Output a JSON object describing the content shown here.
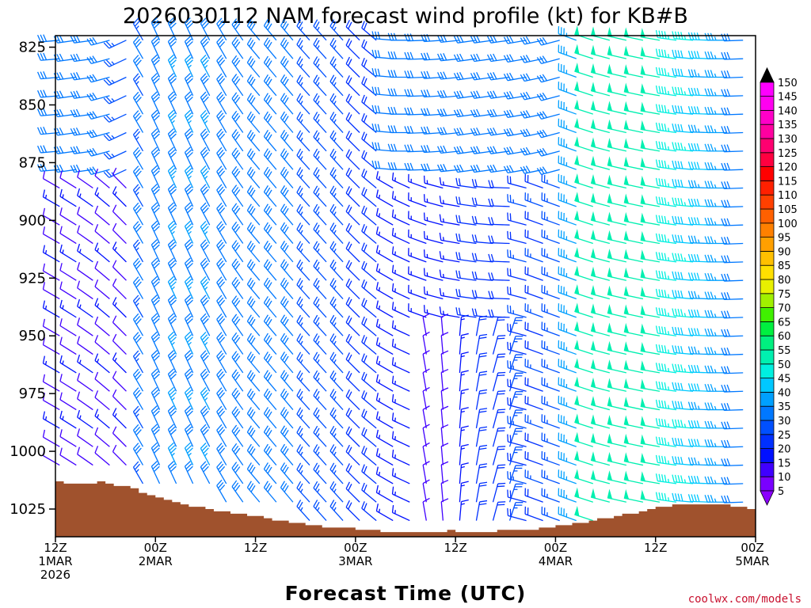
{
  "chart_data": {
    "type": "wind_profile",
    "title": "2026030112 NAM forecast wind profile (kt) for KB#B",
    "xlabel": "Forecast Time (UTC)",
    "ylabel": "",
    "credit": "coolwx.com/models",
    "y_axis": {
      "units": "hPa",
      "range": [
        1037,
        820
      ],
      "ticks": [
        "825",
        "850",
        "875",
        "900",
        "925",
        "950",
        "975",
        "1000",
        "1025"
      ]
    },
    "x_axis": {
      "units": "hours since 12Z 1 Mar 2026",
      "range": [
        0,
        84
      ],
      "ticks": [
        {
          "hour": 0,
          "line1": "12Z",
          "line2": "1MAR",
          "line3": "2026"
        },
        {
          "hour": 12,
          "line1": "00Z",
          "line2": "2MAR",
          "line3": ""
        },
        {
          "hour": 24,
          "line1": "12Z",
          "line2": "",
          "line3": ""
        },
        {
          "hour": 36,
          "line1": "00Z",
          "line2": "3MAR",
          "line3": ""
        },
        {
          "hour": 48,
          "line1": "12Z",
          "line2": "",
          "line3": ""
        },
        {
          "hour": 60,
          "line1": "00Z",
          "line2": "4MAR",
          "line3": ""
        },
        {
          "hour": 72,
          "line1": "12Z",
          "line2": "",
          "line3": ""
        },
        {
          "hour": 84,
          "line1": "00Z",
          "line2": "5MAR",
          "line3": ""
        }
      ]
    },
    "surface_pressure": {
      "color": "#a0522d",
      "hours": [
        0,
        1,
        2,
        3,
        4,
        5,
        6,
        7,
        8,
        9,
        10,
        11,
        12,
        13,
        14,
        15,
        16,
        17,
        18,
        19,
        20,
        21,
        22,
        23,
        24,
        25,
        26,
        27,
        28,
        29,
        30,
        31,
        32,
        33,
        34,
        35,
        36,
        37,
        38,
        39,
        40,
        41,
        42,
        43,
        44,
        45,
        46,
        47,
        48,
        49,
        50,
        51,
        52,
        53,
        54,
        55,
        56,
        57,
        58,
        59,
        60,
        61,
        62,
        63,
        64,
        65,
        66,
        67,
        68,
        69,
        70,
        71,
        72,
        73,
        74,
        75,
        76,
        77,
        78,
        79,
        80,
        81,
        82,
        83,
        84
      ],
      "values": [
        1013,
        1014,
        1014,
        1014,
        1014,
        1013,
        1014,
        1015,
        1015,
        1016,
        1018,
        1019,
        1020,
        1021,
        1022,
        1023,
        1024,
        1024,
        1025,
        1026,
        1026,
        1027,
        1027,
        1028,
        1028,
        1029,
        1030,
        1030,
        1031,
        1031,
        1032,
        1032,
        1033,
        1033,
        1033,
        1033,
        1034,
        1034,
        1034,
        1035,
        1035,
        1035,
        1035,
        1035,
        1035,
        1035,
        1035,
        1034,
        1035,
        1035,
        1035,
        1035,
        1035,
        1034,
        1034,
        1034,
        1034,
        1034,
        1033,
        1033,
        1032,
        1032,
        1031,
        1031,
        1030,
        1029,
        1029,
        1028,
        1027,
        1027,
        1026,
        1025,
        1024,
        1024,
        1023,
        1023,
        1023,
        1023,
        1023,
        1023,
        1023,
        1024,
        1024,
        1025,
        1025
      ]
    },
    "colorbar": {
      "levels": [
        "5",
        "10",
        "15",
        "20",
        "25",
        "30",
        "35",
        "40",
        "45",
        "50",
        "55",
        "60",
        "65",
        "70",
        "75",
        "80",
        "85",
        "90",
        "95",
        "100",
        "105",
        "110",
        "115",
        "120",
        "125",
        "130",
        "135",
        "140",
        "145",
        "150"
      ],
      "colors": [
        "#8b00ff",
        "#7a00ff",
        "#4000ff",
        "#0010ff",
        "#0030ff",
        "#0050ff",
        "#0078ff",
        "#00a0ff",
        "#00c8ff",
        "#00f0e0",
        "#00f0b0",
        "#00f080",
        "#00f040",
        "#40f000",
        "#a0f000",
        "#e8f000",
        "#ffe000",
        "#ffc000",
        "#ffa000",
        "#ff8000",
        "#ff6000",
        "#ff4000",
        "#ff2000",
        "#ff0000",
        "#ff0040",
        "#ff0070",
        "#ff00a0",
        "#ff00c8",
        "#ff00f0",
        "#ff00ff"
      ]
    },
    "barb_levels": [
      822,
      830,
      838,
      846,
      854,
      862,
      870,
      878,
      886,
      894,
      902,
      910,
      918,
      926,
      934,
      942,
      950,
      958,
      966,
      974,
      982,
      990,
      998,
      1006,
      1014,
      1022,
      1030
    ],
    "barb_columns": [
      {
        "hour": 0.5,
        "segments": [
          {
            "from": 822,
            "to": 880,
            "dir": 265,
            "spd": 30,
            "dspd": 0
          },
          {
            "from": 880,
            "to": 1010,
            "dir": 300,
            "spd": 12,
            "dspd": -2
          }
        ]
      },
      {
        "hour": 2.5,
        "segments": [
          {
            "from": 822,
            "to": 880,
            "dir": 262,
            "spd": 30,
            "dspd": 0
          },
          {
            "from": 880,
            "to": 1010,
            "dir": 302,
            "spd": 12,
            "dspd": -2
          }
        ]
      },
      {
        "hour": 4.5,
        "segments": [
          {
            "from": 822,
            "to": 880,
            "dir": 262,
            "spd": 30,
            "dspd": 0
          },
          {
            "from": 880,
            "to": 1010,
            "dir": 305,
            "spd": 12,
            "dspd": -2
          }
        ]
      },
      {
        "hour": 6.5,
        "segments": [
          {
            "from": 822,
            "to": 880,
            "dir": 255,
            "spd": 28,
            "dspd": 0
          },
          {
            "from": 880,
            "to": 1010,
            "dir": 310,
            "spd": 11,
            "dspd": -2
          }
        ]
      },
      {
        "hour": 8.5,
        "segments": [
          {
            "from": 822,
            "to": 880,
            "dir": 245,
            "spd": 26,
            "dspd": 0
          },
          {
            "from": 880,
            "to": 1010,
            "dir": 315,
            "spd": 11,
            "dspd": -2
          }
        ]
      },
      {
        "hour": 10.5,
        "segments": [
          {
            "from": 822,
            "to": 1014,
            "dir": 330,
            "spd": 28,
            "dspd": 2
          }
        ]
      },
      {
        "hour": 12.5,
        "segments": [
          {
            "from": 822,
            "to": 1014,
            "dir": 335,
            "spd": 30,
            "dspd": 2
          }
        ]
      },
      {
        "hour": 14.5,
        "segments": [
          {
            "from": 822,
            "to": 1016,
            "dir": 335,
            "spd": 32,
            "dspd": 2
          }
        ]
      },
      {
        "hour": 16.5,
        "segments": [
          {
            "from": 822,
            "to": 1018,
            "dir": 335,
            "spd": 32,
            "dspd": 2
          }
        ]
      },
      {
        "hour": 18.5,
        "segments": [
          {
            "from": 822,
            "to": 1020,
            "dir": 332,
            "spd": 32,
            "dspd": 2
          }
        ]
      },
      {
        "hour": 20.5,
        "segments": [
          {
            "from": 822,
            "to": 1022,
            "dir": 330,
            "spd": 30,
            "dspd": 2
          }
        ]
      },
      {
        "hour": 22.5,
        "segments": [
          {
            "from": 822,
            "to": 1024,
            "dir": 325,
            "spd": 30,
            "dspd": 0
          }
        ]
      },
      {
        "hour": 24.5,
        "segments": [
          {
            "from": 822,
            "to": 1026,
            "dir": 320,
            "spd": 28,
            "dspd": 0
          }
        ]
      },
      {
        "hour": 26.5,
        "segments": [
          {
            "from": 822,
            "to": 1027,
            "dir": 320,
            "spd": 28,
            "dspd": 0
          }
        ]
      },
      {
        "hour": 28.5,
        "segments": [
          {
            "from": 822,
            "to": 1029,
            "dir": 320,
            "spd": 28,
            "dspd": 0
          }
        ]
      },
      {
        "hour": 30.5,
        "segments": [
          {
            "from": 822,
            "to": 1030,
            "dir": 318,
            "spd": 26,
            "dspd": 0
          }
        ]
      },
      {
        "hour": 32.5,
        "segments": [
          {
            "from": 822,
            "to": 1031,
            "dir": 318,
            "spd": 26,
            "dspd": 0
          }
        ]
      },
      {
        "hour": 34.5,
        "segments": [
          {
            "from": 822,
            "to": 1032,
            "dir": 318,
            "spd": 24,
            "dspd": 0
          }
        ]
      },
      {
        "hour": 36.5,
        "segments": [
          {
            "from": 822,
            "to": 1033,
            "dir": 315,
            "spd": 22,
            "dspd": 0
          }
        ]
      },
      {
        "hour": 38.5,
        "segments": [
          {
            "from": 822,
            "to": 1033,
            "dir": 310,
            "spd": 20,
            "dspd": -1
          }
        ]
      },
      {
        "hour": 40.5,
        "segments": [
          {
            "from": 822,
            "to": 880,
            "dir": 275,
            "spd": 30,
            "dspd": 0
          },
          {
            "from": 880,
            "to": 1034,
            "dir": 300,
            "spd": 16,
            "dspd": -1
          }
        ]
      },
      {
        "hour": 42.5,
        "segments": [
          {
            "from": 822,
            "to": 880,
            "dir": 270,
            "spd": 30,
            "dspd": 0
          },
          {
            "from": 880,
            "to": 1034,
            "dir": 295,
            "spd": 14,
            "dspd": -1
          }
        ]
      },
      {
        "hour": 44.5,
        "segments": [
          {
            "from": 822,
            "to": 880,
            "dir": 268,
            "spd": 30,
            "dspd": 0
          },
          {
            "from": 880,
            "to": 945,
            "dir": 290,
            "spd": 14,
            "dspd": -1
          },
          {
            "from": 945,
            "to": 1034,
            "dir": 350,
            "spd": 8,
            "dspd": 0
          }
        ]
      },
      {
        "hour": 46.5,
        "segments": [
          {
            "from": 822,
            "to": 880,
            "dir": 266,
            "spd": 30,
            "dspd": 0
          },
          {
            "from": 880,
            "to": 945,
            "dir": 285,
            "spd": 14,
            "dspd": -1
          },
          {
            "from": 945,
            "to": 1034,
            "dir": 355,
            "spd": 8,
            "dspd": 0
          }
        ]
      },
      {
        "hour": 48.5,
        "segments": [
          {
            "from": 822,
            "to": 880,
            "dir": 264,
            "spd": 30,
            "dspd": 0
          },
          {
            "from": 880,
            "to": 945,
            "dir": 280,
            "spd": 16,
            "dspd": 0
          },
          {
            "from": 945,
            "to": 1034,
            "dir": 5,
            "spd": 14,
            "dspd": 0
          }
        ]
      },
      {
        "hour": 50.5,
        "segments": [
          {
            "from": 822,
            "to": 880,
            "dir": 262,
            "spd": 30,
            "dspd": 0
          },
          {
            "from": 880,
            "to": 945,
            "dir": 278,
            "spd": 18,
            "dspd": 0
          },
          {
            "from": 945,
            "to": 1034,
            "dir": 10,
            "spd": 18,
            "dspd": 0
          }
        ]
      },
      {
        "hour": 52.5,
        "segments": [
          {
            "from": 822,
            "to": 880,
            "dir": 262,
            "spd": 30,
            "dspd": 0
          },
          {
            "from": 880,
            "to": 945,
            "dir": 275,
            "spd": 20,
            "dspd": 0
          },
          {
            "from": 945,
            "to": 1034,
            "dir": 15,
            "spd": 22,
            "dspd": 0
          }
        ]
      },
      {
        "hour": 54.5,
        "segments": [
          {
            "from": 822,
            "to": 880,
            "dir": 262,
            "spd": 30,
            "dspd": 0
          },
          {
            "from": 880,
            "to": 945,
            "dir": 272,
            "spd": 22,
            "dspd": 0
          },
          {
            "from": 945,
            "to": 1034,
            "dir": 18,
            "spd": 24,
            "dspd": 0
          }
        ]
      },
      {
        "hour": 56.5,
        "segments": [
          {
            "from": 822,
            "to": 880,
            "dir": 260,
            "spd": 30,
            "dspd": 0
          },
          {
            "from": 880,
            "to": 1034,
            "dir": 285,
            "spd": 22,
            "dspd": -1
          }
        ]
      },
      {
        "hour": 58.5,
        "segments": [
          {
            "from": 822,
            "to": 880,
            "dir": 258,
            "spd": 30,
            "dspd": 0
          },
          {
            "from": 880,
            "to": 1033,
            "dir": 290,
            "spd": 22,
            "dspd": -1
          }
        ]
      },
      {
        "hour": 60.5,
        "segments": [
          {
            "from": 822,
            "to": 880,
            "dir": 255,
            "spd": 30,
            "dspd": 0
          },
          {
            "from": 880,
            "to": 1032,
            "dir": 290,
            "spd": 26,
            "dspd": 0
          }
        ]
      },
      {
        "hour": 62.5,
        "segments": [
          {
            "from": 822,
            "to": 1031,
            "dir": 290,
            "spd": 35,
            "dspd": 0
          }
        ]
      },
      {
        "hour": 64.5,
        "segments": [
          {
            "from": 822,
            "to": 1030,
            "dir": 288,
            "spd": 48,
            "dspd": 0
          }
        ]
      },
      {
        "hour": 66.5,
        "segments": [
          {
            "from": 822,
            "to": 1028,
            "dir": 285,
            "spd": 50,
            "dspd": 0
          }
        ]
      },
      {
        "hour": 68.5,
        "segments": [
          {
            "from": 822,
            "to": 1027,
            "dir": 283,
            "spd": 50,
            "dspd": 0
          }
        ]
      },
      {
        "hour": 70.5,
        "segments": [
          {
            "from": 822,
            "to": 1026,
            "dir": 282,
            "spd": 50,
            "dspd": 0
          }
        ]
      },
      {
        "hour": 72.5,
        "segments": [
          {
            "from": 822,
            "to": 1024,
            "dir": 280,
            "spd": 48,
            "dspd": 0
          }
        ]
      },
      {
        "hour": 74.5,
        "segments": [
          {
            "from": 822,
            "to": 1023,
            "dir": 278,
            "spd": 45,
            "dspd": -1
          }
        ]
      },
      {
        "hour": 76.5,
        "segments": [
          {
            "from": 822,
            "to": 1023,
            "dir": 275,
            "spd": 42,
            "dspd": -1
          }
        ]
      },
      {
        "hour": 78.5,
        "segments": [
          {
            "from": 822,
            "to": 1023,
            "dir": 272,
            "spd": 38,
            "dspd": -1
          }
        ]
      },
      {
        "hour": 80.5,
        "segments": [
          {
            "from": 822,
            "to": 1023,
            "dir": 270,
            "spd": 34,
            "dspd": -1
          }
        ]
      },
      {
        "hour": 82.5,
        "segments": [
          {
            "from": 822,
            "to": 1024,
            "dir": 268,
            "spd": 30,
            "dspd": -1
          }
        ]
      }
    ]
  }
}
